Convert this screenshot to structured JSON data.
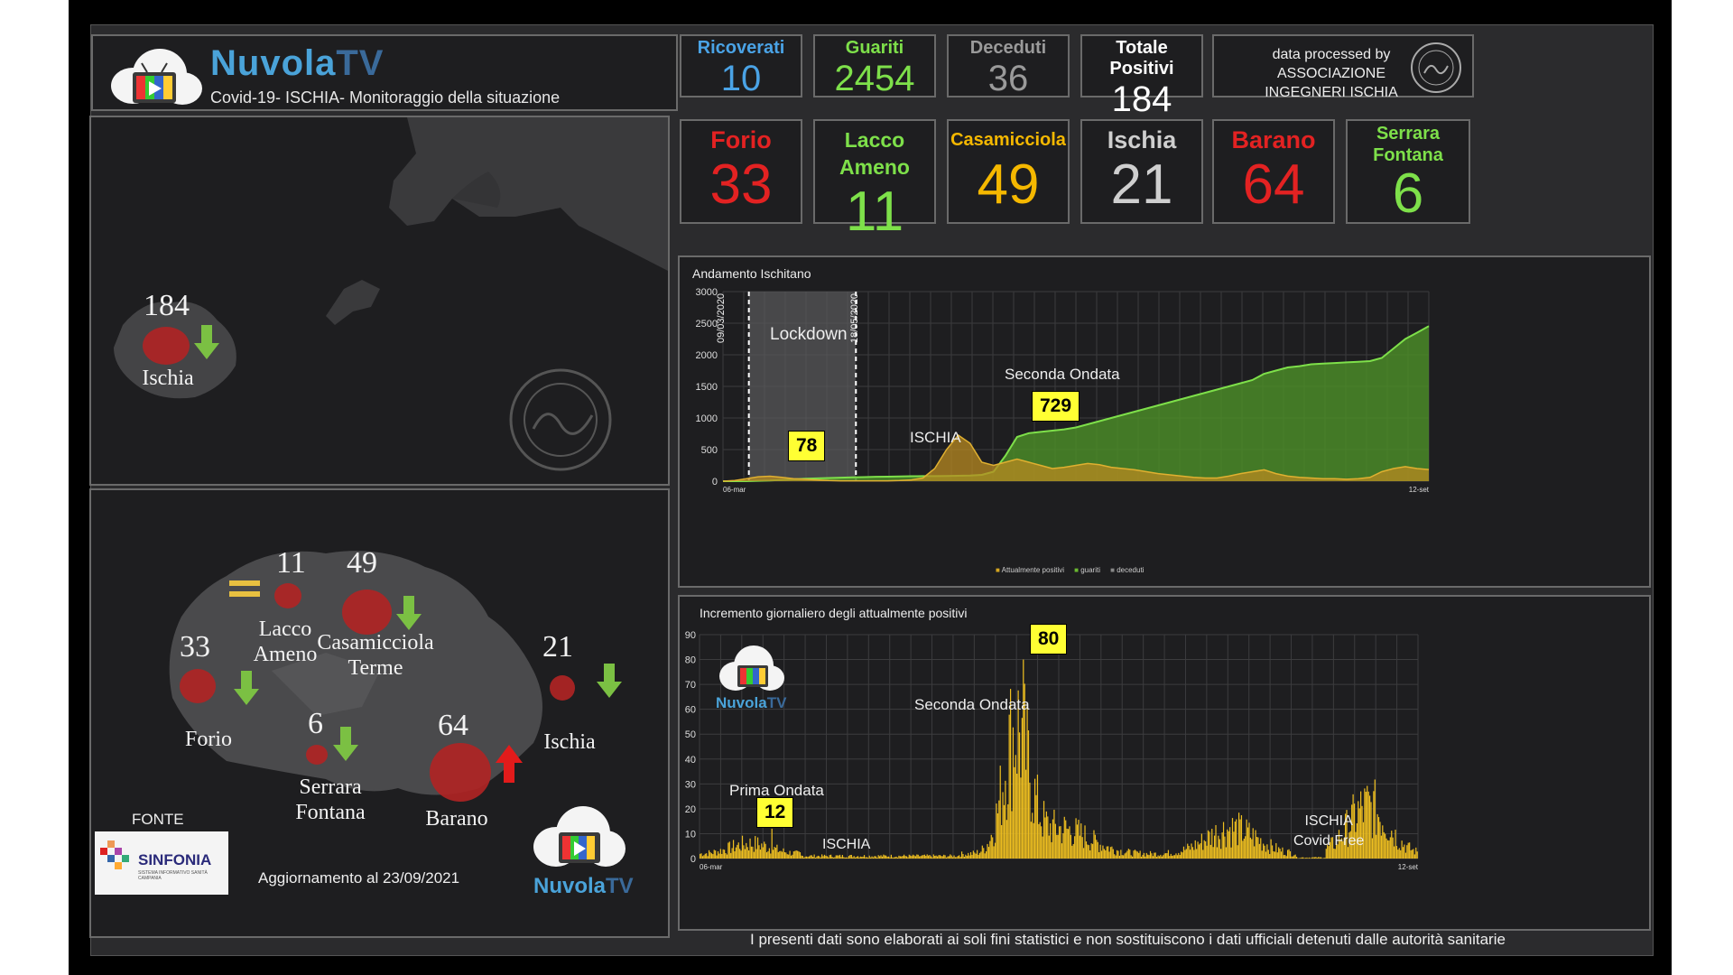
{
  "brand": {
    "name_a": "Nuvola",
    "name_b": "TV",
    "subtitle": "Covid-19- ISCHIA- Monitoraggio della situazione"
  },
  "stats": [
    {
      "label": "Ricoverati",
      "value": "10",
      "color": "#4aa3e6"
    },
    {
      "label": "Guariti",
      "value": "2454",
      "color": "#7ee04a"
    },
    {
      "label": "Deceduti",
      "value": "36",
      "color": "#9a9a9a"
    },
    {
      "label": "Totale Positivi",
      "value": "184",
      "color": "#ffffff"
    }
  ],
  "credit": {
    "line1": "data processed by",
    "line2": "ASSOCIAZIONE",
    "line3": "INGEGNERI ISCHIA"
  },
  "towns": [
    {
      "label": "Forio",
      "value": "33",
      "color": "#e32222"
    },
    {
      "label": "Lacco Ameno",
      "value": "11",
      "color": "#7ee04a"
    },
    {
      "label": "Casamicciola",
      "value": "49",
      "color": "#f5b800"
    },
    {
      "label": "Ischia",
      "value": "21",
      "color": "#cfcfcf"
    },
    {
      "label": "Barano",
      "value": "64",
      "color": "#e32222"
    },
    {
      "label": "Serrara Fontana",
      "value": "6",
      "color": "#7ee04a"
    }
  ],
  "map_top": {
    "total": "184",
    "name": "Ischia"
  },
  "map_bottom": {
    "lacco_num": "11",
    "lacco_name_1": "Lacco",
    "lacco_name_2": "Ameno",
    "casa_num": "49",
    "casa_name_1": "Casamicciola",
    "casa_name_2": "Terme",
    "forio_num": "33",
    "forio_name": "Forio",
    "ischia_num": "21",
    "ischia_name": "Ischia",
    "serrara_num": "6",
    "serrara_name_1": "Serrara",
    "serrara_name_2": "Fontana",
    "barano_num": "64",
    "barano_name": "Barano",
    "fonte": "FONTE",
    "sinfonia": "SINFONIA",
    "sinfonia_sub": "SISTEMA INFORMATIVO SANITÀ CAMPANIA",
    "updated": "Aggiornamento al 23/09/2021"
  },
  "disclaimer": "I presenti dati sono elaborati ai soli fini statistici e non sostituiscono i dati ufficiali detenuti dalle autorità sanitarie",
  "chart_data": [
    {
      "type": "area",
      "title": "Andamento Ischitano",
      "ylim": [
        0,
        3000
      ],
      "yticks": [
        "0",
        "500",
        "1000",
        "1500",
        "2000",
        "2500",
        "3000"
      ],
      "x_first": "06-mar",
      "x_last": "12-set",
      "legend": [
        "Attualmente positivi",
        "guariti",
        "deceduti"
      ],
      "legend_position": "bottom",
      "grid": true,
      "series_colors": {
        "Attualmente positivi": "#d4a520",
        "guariti": "#6ab830",
        "deceduti": "#888888"
      },
      "annotations": {
        "lockdown": "Lockdown",
        "date_start": "09/03/2020",
        "date_end": "18/05/2020",
        "label_78": "78",
        "second_wave": "Seconda Ondata",
        "label_729": "729",
        "island": "ISCHIA"
      },
      "guariti": [
        0,
        0,
        0,
        5,
        10,
        20,
        30,
        40,
        45,
        50,
        55,
        60,
        65,
        70,
        72,
        75,
        78,
        80,
        80,
        82,
        85,
        90,
        100,
        150,
        400,
        700,
        760,
        780,
        800,
        820,
        850,
        900,
        950,
        1000,
        1050,
        1100,
        1150,
        1200,
        1250,
        1300,
        1350,
        1400,
        1450,
        1500,
        1550,
        1600,
        1700,
        1750,
        1800,
        1820,
        1850,
        1860,
        1870,
        1880,
        1890,
        1900,
        1950,
        2100,
        2250,
        2350,
        2454
      ],
      "positivi": [
        0,
        10,
        40,
        70,
        78,
        60,
        40,
        30,
        20,
        10,
        5,
        5,
        5,
        5,
        5,
        10,
        20,
        50,
        200,
        500,
        729,
        600,
        300,
        250,
        300,
        350,
        300,
        250,
        200,
        220,
        250,
        280,
        260,
        220,
        200,
        180,
        150,
        120,
        100,
        80,
        60,
        50,
        50,
        80,
        120,
        150,
        180,
        120,
        80,
        60,
        50,
        40,
        40,
        30,
        40,
        60,
        150,
        200,
        230,
        200,
        184
      ]
    },
    {
      "type": "bar",
      "title": "Incremento giornaliero degli attualmente positivi",
      "ylim": [
        0,
        90
      ],
      "yticks": [
        "0",
        "10",
        "20",
        "30",
        "40",
        "50",
        "60",
        "70",
        "80",
        "90"
      ],
      "x_first": "06-mar",
      "x_last": "12-set",
      "grid": true,
      "color": "#f0c020",
      "annotations": {
        "peak": "80",
        "second_wave": "Seconda Ondata",
        "first_wave": "Prima Ondata",
        "first_peak": "12",
        "island": "ISCHIA",
        "covid_free_1": "ISCHIA",
        "covid_free_2": "Covid Free"
      }
    }
  ]
}
